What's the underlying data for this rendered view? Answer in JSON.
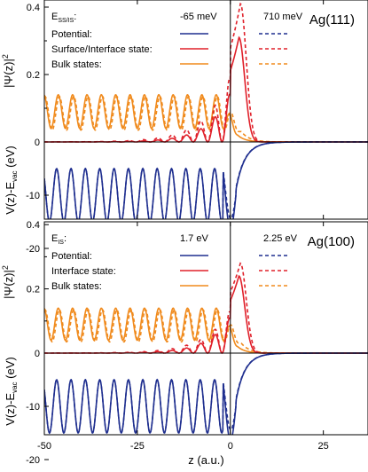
{
  "chart_data": {
    "type": "line",
    "xlabel": "z (a.u.)",
    "xlim": [
      -50,
      37
    ],
    "x_ticks": [
      -50,
      -25,
      0,
      25
    ],
    "x_tick_labels": [
      "-50",
      "-25",
      "0",
      "25"
    ],
    "ylabel_wavefunction": "|Ψ(z)|",
    "ylabel_wavefunction_sup": "2",
    "ylabel_potential": "V(z)-E",
    "ylabel_potential_sub": "vac",
    "ylabel_potential_unit": " (eV)",
    "panels": [
      {
        "id": "ag111",
        "title": "Ag(111)",
        "y_ticks": [
          "0.4",
          "0.2",
          "0",
          "-10",
          "-20"
        ],
        "legend": {
          "header": "E",
          "header_sub": "SS/IS",
          "header_suffix": ":",
          "col1_value": "-65 meV",
          "col2_value": "710 meV",
          "rows": [
            "Potential:",
            "Surface/Interface state:",
            "Bulk states:"
          ]
        },
        "series": [
          {
            "name": "Potential",
            "case": "E = -65 meV",
            "style": "solid",
            "color": "#1f2f8f",
            "description": "periodic bulk potential oscillating between about -5 and -15 eV, dip near z=0, rising to 0 for z>0"
          },
          {
            "name": "Surface/Interface state",
            "case": "E = -65 meV",
            "style": "solid",
            "color": "#e0202a",
            "peak": {
              "z": 2.3,
              "value": 0.31
            }
          },
          {
            "name": "Bulk states",
            "case": "E = -65 meV",
            "style": "solid",
            "color": "#f08a1c",
            "description": "sinusoid between about 0.04 and 0.14"
          },
          {
            "name": "Potential",
            "case": "E = 710 meV",
            "style": "dashed",
            "color": "#1f2f8f"
          },
          {
            "name": "Surface/Interface state",
            "case": "E = 710 meV",
            "style": "dashed",
            "color": "#e0202a",
            "peak": {
              "z": 2.7,
              "value": 0.41
            }
          },
          {
            "name": "Bulk states",
            "case": "E = 710 meV",
            "style": "dashed",
            "color": "#f08a1c"
          }
        ]
      },
      {
        "id": "ag100",
        "title": "Ag(100)",
        "y_ticks": [
          "0.4",
          "0.2",
          "0",
          "-10",
          "-20"
        ],
        "legend": {
          "header": "E",
          "header_sub": "IS",
          "header_suffix": ":",
          "col1_value": "1.7 eV",
          "col2_value": "2.25 eV",
          "rows": [
            "Potential:",
            "Interface state:",
            "Bulk states:"
          ]
        },
        "series": [
          {
            "name": "Potential",
            "case": "E = 1.7 eV",
            "style": "solid",
            "color": "#1f2f8f"
          },
          {
            "name": "Interface state",
            "case": "E = 1.7 eV",
            "style": "solid",
            "color": "#e0202a",
            "peak": {
              "z": 2.3,
              "value": 0.24
            }
          },
          {
            "name": "Bulk states",
            "case": "E = 1.7 eV",
            "style": "solid",
            "color": "#f08a1c"
          },
          {
            "name": "Potential",
            "case": "E = 2.25 eV",
            "style": "dashed",
            "color": "#1f2f8f"
          },
          {
            "name": "Interface state",
            "case": "E = 2.25 eV",
            "style": "dashed",
            "color": "#e0202a",
            "peak": {
              "z": 2.7,
              "value": 0.28
            }
          },
          {
            "name": "Bulk states",
            "case": "E = 2.25 eV",
            "style": "dashed",
            "color": "#f08a1c"
          }
        ]
      }
    ]
  }
}
